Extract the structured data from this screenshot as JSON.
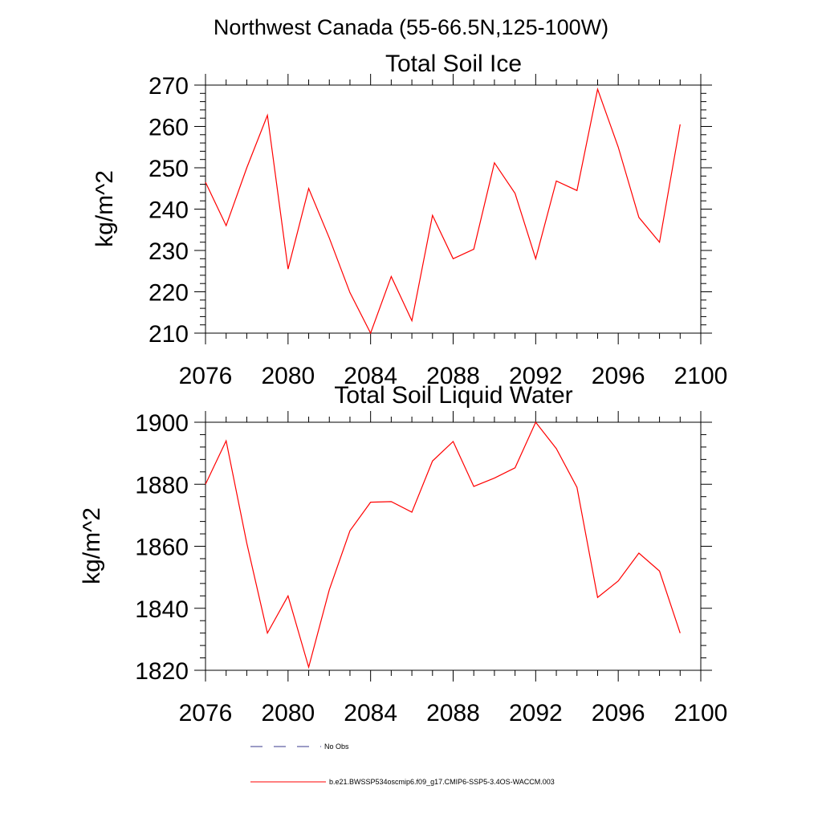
{
  "main_title": "Northwest Canada (55-66.5N,125-100W)",
  "chart_data": [
    {
      "type": "line",
      "title": "Total Soil Ice",
      "xlabel": "",
      "ylabel": "kg/m^2",
      "xlim": [
        2076,
        2100
      ],
      "ylim": [
        210,
        270
      ],
      "xticks": [
        2076,
        2080,
        2084,
        2088,
        2092,
        2096,
        2100
      ],
      "yticks": [
        210,
        220,
        230,
        240,
        250,
        260,
        270
      ],
      "series": [
        {
          "name": "b.e21.BWSSP534oscmip6.f09_g17.CMIP6-SSP5-3.4OS-WACCM.003",
          "color": "#ff0000",
          "x": [
            2076,
            2077,
            2078,
            2079,
            2080,
            2081,
            2082,
            2083,
            2084,
            2085,
            2086,
            2087,
            2088,
            2089,
            2090,
            2091,
            2092,
            2093,
            2094,
            2095,
            2096,
            2097,
            2098,
            2099
          ],
          "values": [
            246.5,
            236.0,
            250.0,
            262.7,
            225.5,
            245.0,
            233.0,
            219.8,
            210.0,
            223.7,
            213.0,
            238.5,
            228.0,
            230.3,
            251.2,
            243.8,
            228.0,
            246.8,
            244.5,
            269.0,
            255.0,
            238.0,
            232.0,
            260.5
          ]
        }
      ]
    },
    {
      "type": "line",
      "title": "Total Soil Liquid Water",
      "xlabel": "",
      "ylabel": "kg/m^2",
      "xlim": [
        2076,
        2100
      ],
      "ylim": [
        1820,
        1900
      ],
      "xticks": [
        2076,
        2080,
        2084,
        2088,
        2092,
        2096,
        2100
      ],
      "yticks": [
        1820,
        1840,
        1860,
        1880,
        1900
      ],
      "series": [
        {
          "name": "b.e21.BWSSP534oscmip6.f09_g17.CMIP6-SSP5-3.4OS-WACCM.003",
          "color": "#ff0000",
          "x": [
            2076,
            2077,
            2078,
            2079,
            2080,
            2081,
            2082,
            2083,
            2084,
            2085,
            2086,
            2087,
            2088,
            2089,
            2090,
            2091,
            2092,
            2093,
            2094,
            2095,
            2096,
            2097,
            2098,
            2099
          ],
          "values": [
            1880.0,
            1894.0,
            1861.0,
            1832.0,
            1844.0,
            1821.0,
            1846.0,
            1865.0,
            1874.2,
            1874.4,
            1871.0,
            1887.5,
            1893.8,
            1879.3,
            1882.0,
            1885.3,
            1900.0,
            1891.5,
            1879.0,
            1843.5,
            1848.8,
            1857.8,
            1852.0,
            1832.0
          ]
        }
      ]
    }
  ],
  "legend": {
    "placement": "bottom-center",
    "entries": [
      {
        "label": "No Obs",
        "color": "#3a3a8c",
        "style": "dashed"
      },
      {
        "label": "b.e21.BWSSP534oscmip6.f09_g17.CMIP6-SSP5-3.4OS-WACCM.003",
        "color": "#ff0000",
        "style": "solid"
      }
    ]
  }
}
